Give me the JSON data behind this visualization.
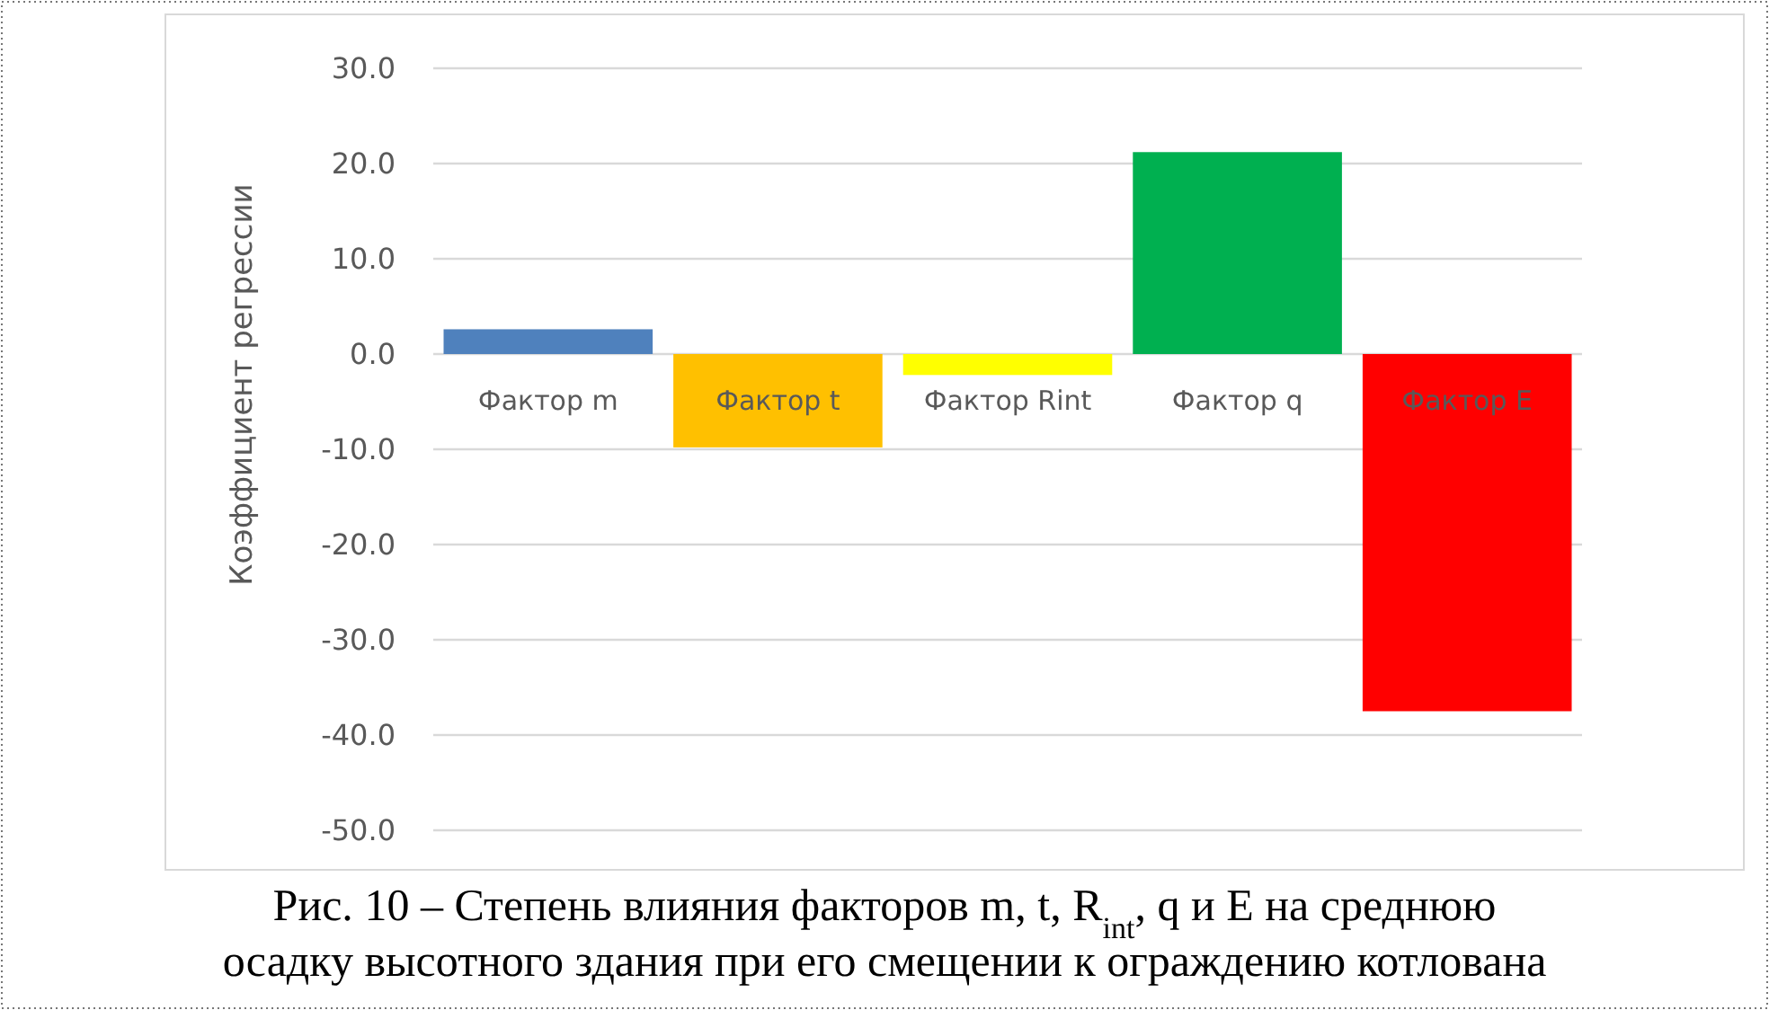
{
  "chart_data": {
    "type": "bar",
    "title": "Рис. 10 – Степень влияния факторов m, t, R$_{int}$, q и E на среднюю осадку высотного здания при его смещении к ограждению котлована",
    "ylabel": "Коэффициент регрессии",
    "categories": [
      "Фактор m",
      "Фактор t",
      "Фактор Rint",
      "Фактор q",
      "Фактор E"
    ],
    "values": [
      2.6,
      -9.8,
      -2.2,
      21.2,
      -37.5
    ],
    "colors": [
      "#4f81bd",
      "#ffc000",
      "#ffff00",
      "#00b050",
      "#ff0000"
    ],
    "ylim": [
      -50,
      30
    ],
    "yticks": [
      {
        "value": -50,
        "label": "-50.0"
      },
      {
        "value": -40,
        "label": "-40.0"
      },
      {
        "value": -30,
        "label": "-30.0"
      },
      {
        "value": -20,
        "label": "-20.0"
      },
      {
        "value": -10,
        "label": "-10.0"
      },
      {
        "value": 0,
        "label": "0.0"
      },
      {
        "value": 10,
        "label": "10.0"
      },
      {
        "value": 20,
        "label": "20.0"
      },
      {
        "value": 30,
        "label": "30.0"
      }
    ],
    "grid": "y"
  }
}
